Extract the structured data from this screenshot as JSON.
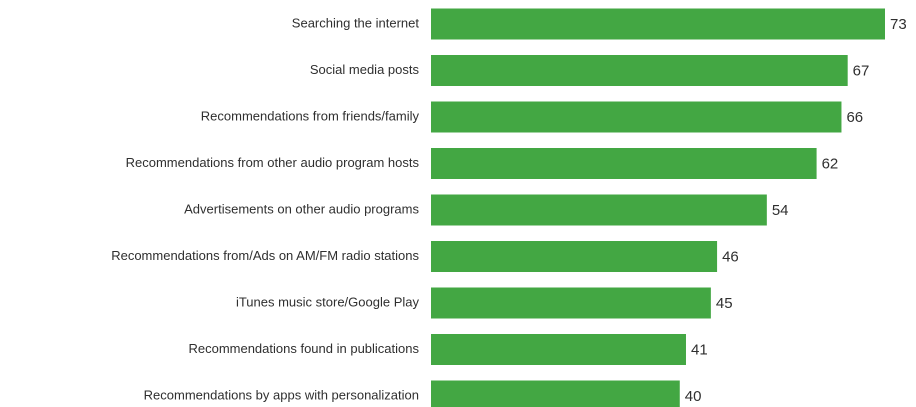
{
  "chart_data": {
    "type": "bar",
    "orientation": "horizontal",
    "categories": [
      "Searching the internet",
      "Social media posts",
      "Recommendations from friends/family",
      "Recommendations from other audio program hosts",
      "Advertisements on other audio programs",
      "Recommendations from/Ads on AM/FM radio stations",
      "iTunes music store/Google Play",
      "Recommendations found in publications",
      "Recommendations by apps with personalization"
    ],
    "values": [
      73,
      67,
      66,
      62,
      54,
      46,
      45,
      41,
      40
    ],
    "value_labels": [
      "73",
      "67",
      "66",
      "62",
      "54",
      "46",
      "45",
      "41",
      "40"
    ],
    "bar_color": "#43a743",
    "xlim": [
      0,
      73
    ],
    "grid": false,
    "legend": "none",
    "title": "",
    "xlabel": "",
    "ylabel": ""
  }
}
